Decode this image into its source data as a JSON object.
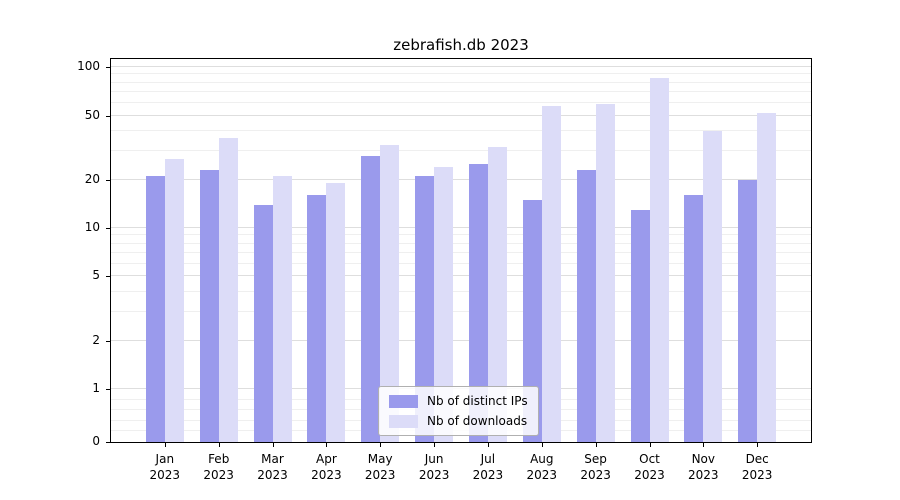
{
  "chart_data": {
    "type": "bar",
    "title": "zebrafish.db 2023",
    "categories": [
      "Jan",
      "Feb",
      "Mar",
      "Apr",
      "May",
      "Jun",
      "Jul",
      "Aug",
      "Sep",
      "Oct",
      "Nov",
      "Dec"
    ],
    "year": "2023",
    "series": [
      {
        "name": "Nb of distinct IPs",
        "color": "#9a9aec",
        "values": [
          21,
          23,
          14,
          16,
          28,
          21,
          25,
          15,
          23,
          13,
          16,
          20
        ]
      },
      {
        "name": "Nb of downloads",
        "color": "#dcdcf8",
        "values": [
          27,
          36,
          21,
          19,
          33,
          24,
          32,
          57,
          59,
          85,
          40,
          52
        ]
      }
    ],
    "yscale": "symlog",
    "yticks": [
      0,
      1,
      2,
      5,
      10,
      20,
      50,
      100
    ],
    "ylim": [
      0,
      110
    ],
    "xlabel": "",
    "ylabel": "",
    "grid": true,
    "legend_position": "lower center"
  }
}
